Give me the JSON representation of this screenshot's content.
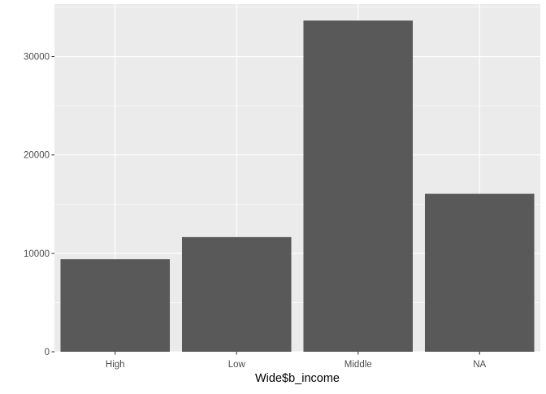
{
  "chart_data": {
    "type": "bar",
    "title": "",
    "xlabel": "Wide$b_income",
    "ylabel": "",
    "categories": [
      "High",
      "Low",
      "Middle",
      "NA"
    ],
    "values": [
      9400,
      11650,
      33650,
      16050
    ],
    "ylim": [
      0,
      35330
    ],
    "yticks": [
      0,
      10000,
      20000,
      30000
    ],
    "ytick_labels": [
      "0",
      "10000",
      "20000",
      "30000"
    ],
    "grid": true,
    "legend": "none",
    "colors": {
      "bar": "#595959",
      "panel_background": "#ebebeb",
      "grid_major": "#ffffff",
      "tick_text": "#4d4d4d",
      "axis_title": "#000000"
    }
  }
}
